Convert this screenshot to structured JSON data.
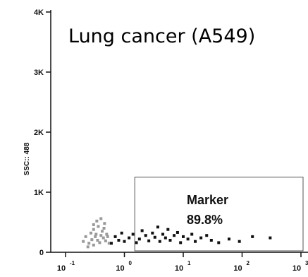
{
  "chart_data": {
    "type": "scatter",
    "title": "Lung cancer (A549)",
    "xlabel": "",
    "ylabel": "SSC:: 488",
    "xscale": "log",
    "xlim": [
      0.1,
      1000
    ],
    "ylim": [
      0,
      4000
    ],
    "x_ticks": [
      {
        "base": "10",
        "exp": "-1"
      },
      {
        "base": "10",
        "exp": "0"
      },
      {
        "base": "10",
        "exp": "1"
      },
      {
        "base": "10",
        "exp": "2"
      },
      {
        "base": "10",
        "exp": "3"
      }
    ],
    "y_ticks": [
      {
        "value": 0,
        "label": "0"
      },
      {
        "value": 1000,
        "label": "1K"
      },
      {
        "value": 2000,
        "label": "2K"
      },
      {
        "value": 3000,
        "label": "3K"
      },
      {
        "value": 4000,
        "label": "4K"
      }
    ],
    "gate": {
      "label": "Marker",
      "percent": "89.8%",
      "x_range": [
        1.5,
        1000
      ],
      "y_range": [
        0,
        1250
      ]
    },
    "series": [
      {
        "color": "#9a9a9a",
        "points": [
          [
            0.2,
            180
          ],
          [
            0.22,
            260
          ],
          [
            0.25,
            150
          ],
          [
            0.27,
            320
          ],
          [
            0.28,
            210
          ],
          [
            0.3,
            380
          ],
          [
            0.3,
            120
          ],
          [
            0.32,
            260
          ],
          [
            0.33,
            300
          ],
          [
            0.35,
            200
          ],
          [
            0.36,
            430
          ],
          [
            0.38,
            160
          ],
          [
            0.4,
            280
          ],
          [
            0.42,
            350
          ],
          [
            0.44,
            240
          ],
          [
            0.46,
            480
          ],
          [
            0.48,
            190
          ],
          [
            0.5,
            300
          ],
          [
            0.52,
            260
          ],
          [
            0.55,
            150
          ],
          [
            0.24,
            90
          ],
          [
            0.34,
            520
          ],
          [
            0.4,
            560
          ],
          [
            0.3,
            460
          ],
          [
            0.45,
            400
          ]
        ]
      },
      {
        "color": "#111111",
        "points": [
          [
            0.6,
            150
          ],
          [
            0.7,
            260
          ],
          [
            0.8,
            200
          ],
          [
            0.9,
            320
          ],
          [
            1.0,
            180
          ],
          [
            1.2,
            240
          ],
          [
            1.4,
            300
          ],
          [
            1.6,
            160
          ],
          [
            1.8,
            220
          ],
          [
            2.0,
            360
          ],
          [
            2.3,
            280
          ],
          [
            2.6,
            190
          ],
          [
            3.0,
            320
          ],
          [
            3.3,
            250
          ],
          [
            3.7,
            420
          ],
          [
            4.0,
            180
          ],
          [
            4.5,
            300
          ],
          [
            5.0,
            240
          ],
          [
            5.5,
            380
          ],
          [
            6.0,
            200
          ],
          [
            7.0,
            280
          ],
          [
            8.0,
            330
          ],
          [
            9.0,
            160
          ],
          [
            10,
            260
          ],
          [
            12,
            220
          ],
          [
            14,
            300
          ],
          [
            16,
            180
          ],
          [
            20,
            240
          ],
          [
            25,
            280
          ],
          [
            30,
            200
          ],
          [
            40,
            160
          ],
          [
            60,
            220
          ],
          [
            90,
            180
          ],
          [
            150,
            260
          ],
          [
            300,
            240
          ]
        ]
      }
    ]
  }
}
